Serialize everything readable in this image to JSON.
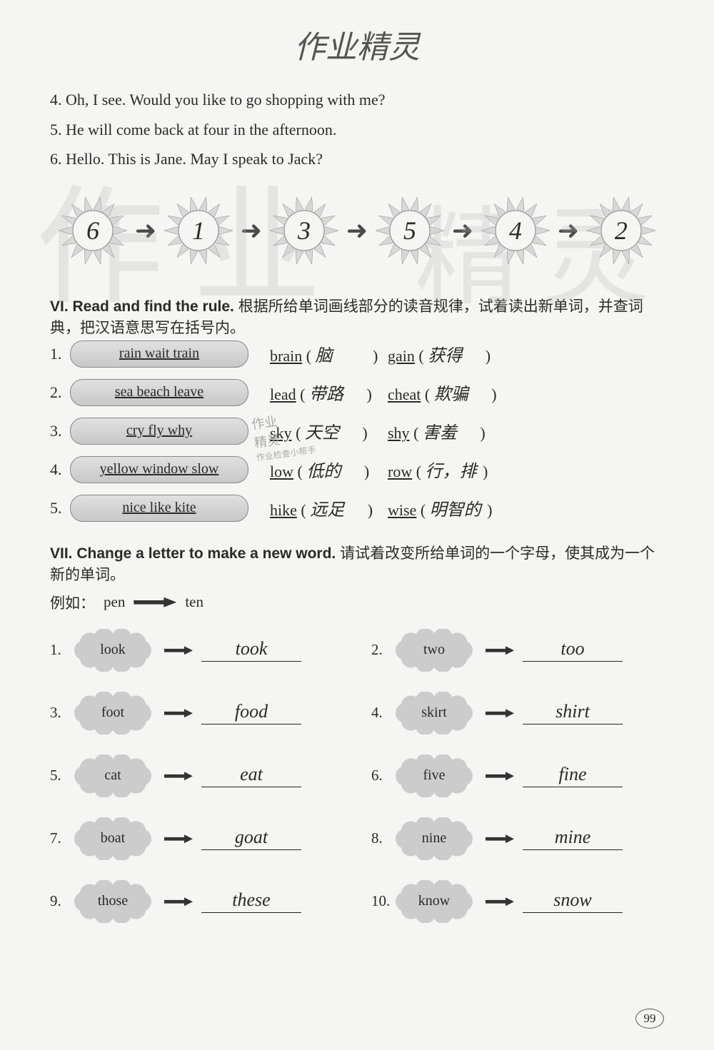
{
  "watermarks": {
    "header": "作业精灵",
    "bg1": "作业",
    "bg2": "精灵",
    "stamp_line1": "作业",
    "stamp_line2": "精灵",
    "stamp_line3": "作业检查小帮手"
  },
  "sentences": [
    "4. Oh, I see. Would you like to go shopping with me?",
    "5. He will come back at four in the afternoon.",
    "6. Hello. This is Jane. May I speak to Jack?"
  ],
  "sequence": {
    "values": [
      "6",
      "1",
      "3",
      "5",
      "4",
      "2"
    ],
    "flower_fill": "#d8d8d8",
    "flower_stroke": "#888888",
    "arrow_color": "#4a4a4a"
  },
  "section_vi": {
    "heading_en": "VI. Read and find the rule.",
    "heading_cn": "根据所给单词画线部分的读音规律，试着读出新单词，并查词典，把汉语意思写在括号内。",
    "rows": [
      {
        "num": "1.",
        "pill": "rain  wait  train",
        "w1": "brain",
        "a1": "脑",
        "w2": "gain",
        "a2": "获得"
      },
      {
        "num": "2.",
        "pill": "sea  beach  leave",
        "w1": "lead",
        "a1": "带路",
        "w2": "cheat",
        "a2": "欺骗"
      },
      {
        "num": "3.",
        "pill": "cry  fly  why",
        "w1": "sky",
        "a1": "天空",
        "w2": "shy",
        "a2": "害羞"
      },
      {
        "num": "4.",
        "pill": "yellow  window  slow",
        "w1": "low",
        "a1": "低的",
        "w2": "row",
        "a2": "行，排"
      },
      {
        "num": "5.",
        "pill": "nice  like  kite",
        "w1": "hike",
        "a1": "远足",
        "w2": "wise",
        "a2": "明智的"
      }
    ]
  },
  "section_vii": {
    "heading_en": "VII. Change a letter to make a new word.",
    "heading_cn": "请试着改变所给单词的一个字母，使其成为一个新的单词。",
    "example_label": "例如：",
    "example_from": "pen",
    "example_to": "ten",
    "items": [
      {
        "num": "1.",
        "word": "look",
        "answer": "took"
      },
      {
        "num": "2.",
        "word": "two",
        "answer": "too"
      },
      {
        "num": "3.",
        "word": "foot",
        "answer": "food"
      },
      {
        "num": "4.",
        "word": "skirt",
        "answer": "shirt"
      },
      {
        "num": "5.",
        "word": "cat",
        "answer": "eat"
      },
      {
        "num": "6.",
        "word": "five",
        "answer": "fine"
      },
      {
        "num": "7.",
        "word": "boat",
        "answer": "goat"
      },
      {
        "num": "8.",
        "word": "nine",
        "answer": "mine"
      },
      {
        "num": "9.",
        "word": "those",
        "answer": "these"
      },
      {
        "num": "10.",
        "word": "know",
        "answer": "snow"
      }
    ]
  },
  "page_number": "99",
  "colors": {
    "bg": "#f5f5f3",
    "text": "#2a2a2a",
    "cloud_fill": "#cccccc",
    "pill_fill": "#d4d4d4"
  }
}
